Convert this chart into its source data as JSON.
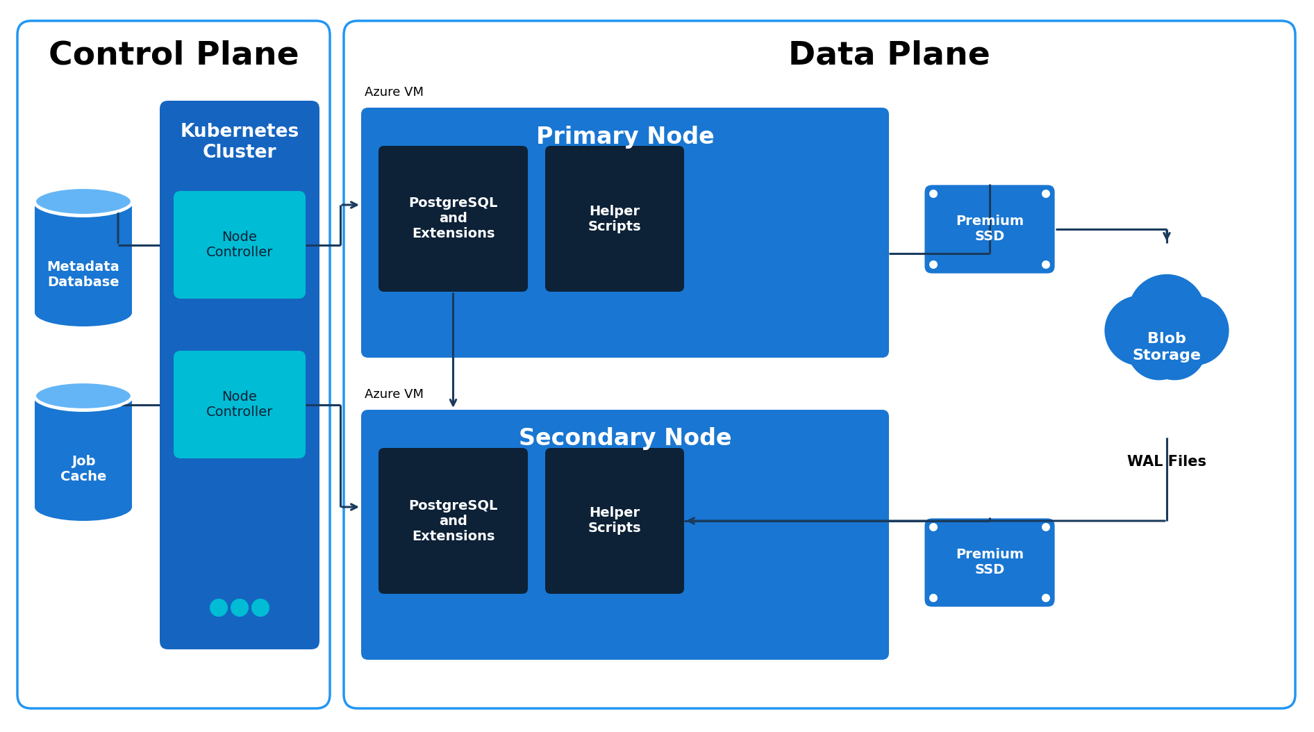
{
  "bg_color": "#ffffff",
  "border_color": "#2196F3",
  "control_plane_title": "Control Plane",
  "data_plane_title": "Data Plane",
  "k8s_cluster_title": "Kubernetes\nCluster",
  "k8s_color": "#1565C0",
  "node_ctrl_color": "#00BCD4",
  "primary_node_title": "Primary Node",
  "secondary_node_title": "Secondary Node",
  "node_bg_color": "#1976D2",
  "pg_color": "#0D2137",
  "helper_color": "#0D2137",
  "pg_text": "PostgreSQL\nand\nExtensions",
  "helper_text": "Helper\nScripts",
  "premium_ssd_color": "#1976D2",
  "premium_ssd_text": "Premium\nSSD",
  "blob_color": "#1976D2",
  "blob_text": "Blob\nStorage",
  "wal_text": "WAL Files",
  "metadata_db_text": "Metadata\nDatabase",
  "job_cache_text": "Job\nCache",
  "cylinder_color": "#1976D2",
  "cylinder_top_color": "#64B5F6",
  "node_ctrl_text": "Node\nController",
  "azure_vm_text": "Azure VM",
  "arrow_color": "#1a3a5c"
}
